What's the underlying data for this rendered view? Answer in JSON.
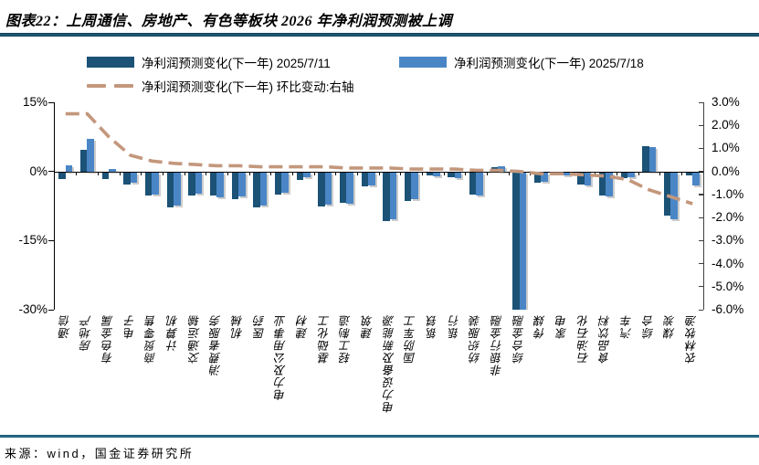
{
  "header": {
    "title": "图表22：上周通信、房地产、有色等板块 2026 年净利润预测被上调"
  },
  "footer": {
    "source": "来源：wind，国金证券研究所"
  },
  "colors": {
    "bar_dark": "#1b5276",
    "bar_light": "#4a86c6",
    "line_dash": "#c3977c",
    "rule": "#123f57",
    "right_spine": "#404040"
  },
  "chart_data": {
    "type": "bar",
    "title": "上周通信、房地产、有色等板块2026年净利润预测被上调",
    "categories": [
      "通信",
      "房地产",
      "有色金属",
      "电子",
      "商贸零售",
      "计算机",
      "交通运输",
      "消费者服务",
      "机械",
      "医药",
      "电力及公用事业",
      "建材",
      "基础化工",
      "轻工制造",
      "建筑",
      "电力设备及新能源",
      "国防军工",
      "钢铁",
      "银行",
      "纺织服装",
      "非银行金融",
      "综合金融",
      "传媒",
      "家电",
      "石油石化",
      "食品饮料",
      "汽车",
      "综合",
      "煤炭",
      "农林牧渔"
    ],
    "series": [
      {
        "name": "净利润预测变化(下一年) 2025/7/11",
        "type": "bar",
        "axis": "left",
        "color": "#1b5276",
        "values": [
          -1.5,
          4.7,
          -1.5,
          -2.7,
          -5.0,
          -7.7,
          -5.0,
          -5.1,
          -5.8,
          -7.7,
          -4.8,
          -1.6,
          -7.5,
          -6.6,
          -3.1,
          -10.5,
          -6.2,
          -0.6,
          -1.0,
          -4.9,
          1.0,
          -30.5,
          -2.3,
          -0.5,
          -2.7,
          -5.0,
          -1.3,
          5.5,
          -9.3,
          -0.6
        ]
      },
      {
        "name": "净利润预测变化(下一年) 2025/7/18",
        "type": "bar",
        "axis": "left",
        "color": "#4a86c6",
        "values": [
          1.4,
          7.0,
          0.5,
          -2.2,
          -4.8,
          -7.3,
          -4.6,
          -5.4,
          -5.3,
          -7.3,
          -4.5,
          -1.1,
          -7.0,
          -6.9,
          -2.8,
          -10.1,
          -5.9,
          -0.8,
          -1.3,
          -5.1,
          1.2,
          -31.0,
          -2.1,
          -0.7,
          -2.9,
          -5.3,
          -1.0,
          5.3,
          -10.2,
          -2.8
        ]
      },
      {
        "name": "净利润预测变化(下一年) 环比变动:右轴",
        "type": "line-dashed",
        "axis": "right",
        "color": "#c3977c",
        "values": [
          2.5,
          2.5,
          1.5,
          0.7,
          0.45,
          0.35,
          0.3,
          0.25,
          0.25,
          0.2,
          0.2,
          0.2,
          0.2,
          0.15,
          0.15,
          0.15,
          0.1,
          0.1,
          0.1,
          0.05,
          0.05,
          0.0,
          -0.1,
          -0.1,
          -0.15,
          -0.2,
          -0.35,
          -0.8,
          -1.1,
          -1.4
        ]
      }
    ],
    "left_axis": {
      "min": -30,
      "max": 15,
      "ticks": [
        "15%",
        "0%",
        "-15%",
        "-30%"
      ],
      "tick_values": [
        15,
        0,
        -15,
        -30
      ]
    },
    "right_axis": {
      "min": -6,
      "max": 3,
      "ticks": [
        "3.0%",
        "2.0%",
        "1.0%",
        "0.0%",
        "-1.0%",
        "-2.0%",
        "-3.0%",
        "-4.0%",
        "-5.0%",
        "-6.0%"
      ],
      "tick_values": [
        3,
        2,
        1,
        0,
        -1,
        -2,
        -3,
        -4,
        -5,
        -6
      ]
    },
    "grid": false,
    "legend_position": "top"
  }
}
